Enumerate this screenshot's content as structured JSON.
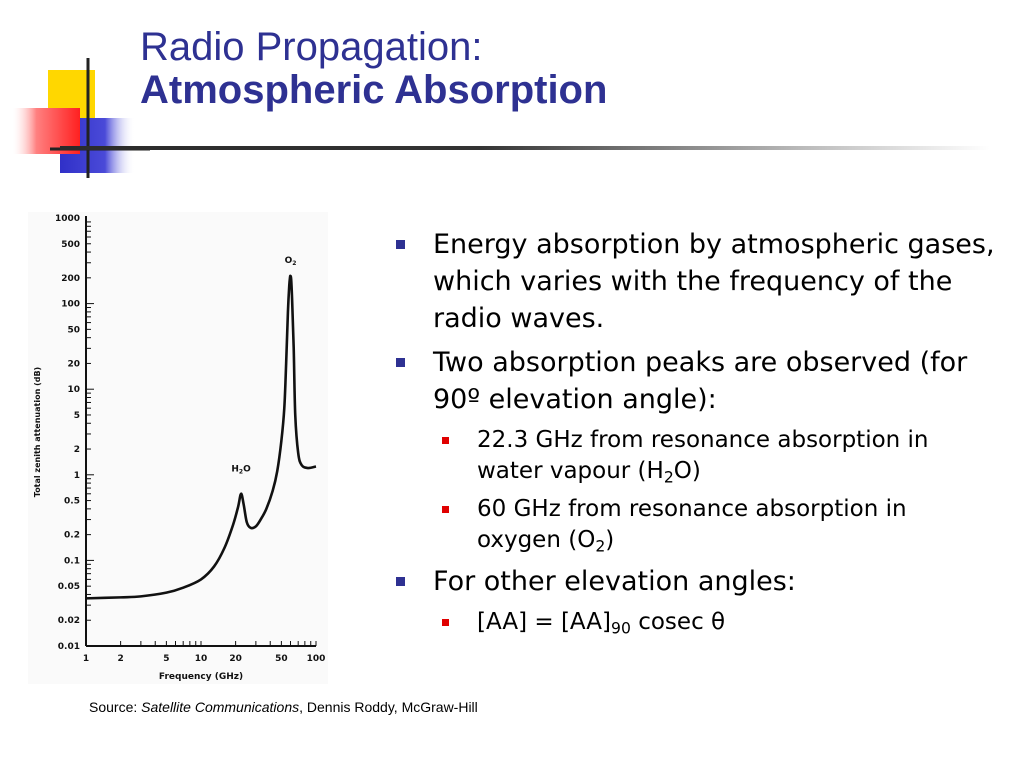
{
  "title": {
    "line1": "Radio Propagation:",
    "line2": "Atmospheric Absorption"
  },
  "theme": {
    "title_color": "#2e3192",
    "bullet_color": "#2e3192",
    "sub_bullet_color": "#e00000",
    "deco_yellow": "#ffd700",
    "deco_red": "#ff3b3b",
    "deco_blue": "#3434c8"
  },
  "bullets": [
    {
      "text": "Energy absorption by atmospheric gases, which varies with the frequency of the radio waves.",
      "subs": []
    },
    {
      "text": "Two absorption peaks are observed (for 90º elevation angle):",
      "subs": [
        {
          "pre": "22.3 GHz from resonance absorption in water vapour (H",
          "sub": "2",
          "post": "O)"
        },
        {
          "pre": "60 GHz from resonance absorption in oxygen (O",
          "sub": "2",
          "post": ")"
        }
      ]
    },
    {
      "text": "For other elevation angles:",
      "subs": [
        {
          "pre": "[AA] = [AA]",
          "sub": "90",
          "post": " cosec θ"
        }
      ]
    }
  ],
  "source": {
    "prefix": "Source: ",
    "book": "Satellite Communications",
    "suffix": ", Dennis Roddy, McGraw-Hill"
  },
  "chart_data": {
    "type": "line",
    "title": "",
    "xlabel": "Frequency (GHz)",
    "ylabel": "Total zenith attenuation (dB)",
    "xscale": "log",
    "yscale": "log",
    "xlim": [
      1,
      100
    ],
    "ylim": [
      0.01,
      1000
    ],
    "grid": false,
    "x_ticks": [
      "1",
      "2",
      "5",
      "10",
      "20",
      "50",
      "100"
    ],
    "y_ticks": [
      "1000",
      "500",
      "200",
      "100",
      "50",
      "20",
      "10",
      "5",
      "2",
      "1",
      "0.5",
      "0.2",
      "0.1",
      "0.05",
      "0.02",
      "0.01"
    ],
    "annotations": [
      {
        "label": "H",
        "sub": "2",
        "post": "O",
        "x": 22.3,
        "y": 1.1
      },
      {
        "label": "O",
        "sub": "2",
        "post": "",
        "x": 60,
        "y": 300
      }
    ],
    "series": [
      {
        "x": [
          1,
          2,
          3,
          5,
          7,
          10,
          13,
          16,
          19,
          21,
          22.3,
          23.5,
          25,
          27,
          30,
          33,
          37,
          42,
          46,
          50,
          53,
          55,
          57,
          58.5,
          59.5,
          60,
          60.5,
          61,
          62,
          64,
          66,
          70,
          75,
          85,
          100
        ],
        "y": [
          0.036,
          0.037,
          0.038,
          0.042,
          0.048,
          0.06,
          0.085,
          0.14,
          0.26,
          0.42,
          0.6,
          0.45,
          0.28,
          0.24,
          0.25,
          0.3,
          0.4,
          0.65,
          1.1,
          2.5,
          6,
          20,
          80,
          160,
          205,
          210,
          205,
          180,
          110,
          30,
          5,
          1.8,
          1.3,
          1.2,
          1.25
        ]
      }
    ]
  }
}
